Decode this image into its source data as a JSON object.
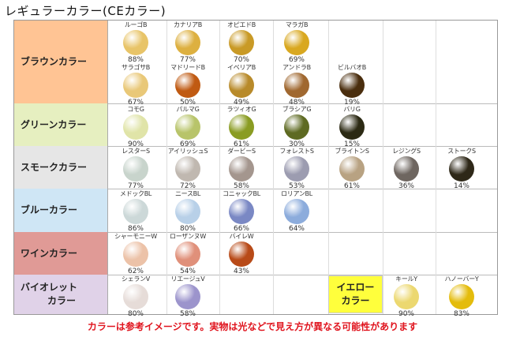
{
  "title": "レギュラーカラー(CEカラー)",
  "note": "カラーは参考イメージです。実物は光などで見え方が異なる可能性があります",
  "categories": [
    {
      "label": "ブラウンカラー",
      "color": "#ffc494"
    },
    {
      "label": "グリーンカラー",
      "color": "#e6efc0"
    },
    {
      "label": "スモークカラー",
      "color": "#e6e6e6"
    },
    {
      "label": "ブルーカラー",
      "color": "#cfe6f5"
    },
    {
      "label": "ワインカラー",
      "color": "#e09a96"
    },
    {
      "label": "バイオレット",
      "label2": "カラー",
      "color": "#e0d2e8"
    }
  ],
  "yellow": {
    "label": "イエロー",
    "label2": "カラー",
    "color": "#ffff3c"
  },
  "swatches": {
    "brown1": [
      {
        "name": "ルーゴB",
        "pct": "88%",
        "color": "#e8c468"
      },
      {
        "name": "カナリアB",
        "pct": "77%",
        "color": "#ddb040"
      },
      {
        "name": "オピエドB",
        "pct": "70%",
        "color": "#c99a26"
      },
      {
        "name": "マラガB",
        "pct": "69%",
        "color": "#d9a820"
      }
    ],
    "brown2": [
      {
        "name": "サラゴサB",
        "pct": "67%",
        "color": "#e9c878"
      },
      {
        "name": "マドリードB",
        "pct": "50%",
        "color": "#c05a12"
      },
      {
        "name": "イベリアB",
        "pct": "49%",
        "color": "#b88a2a"
      },
      {
        "name": "アンドラB",
        "pct": "48%",
        "color": "#a06830"
      },
      {
        "name": "ビルバオB",
        "pct": "19%",
        "color": "#4a2e0e"
      }
    ],
    "green": [
      {
        "name": "コモG",
        "pct": "90%",
        "color": "#e0e4a8"
      },
      {
        "name": "パルマG",
        "pct": "69%",
        "color": "#b8c46a"
      },
      {
        "name": "ラツィオG",
        "pct": "61%",
        "color": "#8a9c22"
      },
      {
        "name": "ブラシアG",
        "pct": "30%",
        "color": "#5e6a22"
      },
      {
        "name": "バリG",
        "pct": "15%",
        "color": "#2c2a14"
      }
    ],
    "smoke": [
      {
        "name": "レスターS",
        "pct": "77%",
        "color": "#c8d4cc"
      },
      {
        "name": "アイリッシュS",
        "pct": "72%",
        "color": "#c0b8b0"
      },
      {
        "name": "ダービーS",
        "pct": "58%",
        "color": "#a4968e"
      },
      {
        "name": "フォレストS",
        "pct": "53%",
        "color": "#9c9cb0"
      },
      {
        "name": "ブライトンS",
        "pct": "61%",
        "color": "#b8a282"
      },
      {
        "name": "レジングS",
        "pct": "36%",
        "color": "#6e6660"
      },
      {
        "name": "ストークS",
        "pct": "14%",
        "color": "#2e2818"
      }
    ],
    "blue": [
      {
        "name": "メドックBL",
        "pct": "86%",
        "color": "#ccd8d8"
      },
      {
        "name": "ニースBL",
        "pct": "80%",
        "color": "#b8d0e8"
      },
      {
        "name": "コニャックBL",
        "pct": "66%",
        "color": "#7a88c4"
      },
      {
        "name": "ロリアンBL",
        "pct": "64%",
        "color": "#8cacdc"
      }
    ],
    "wine": [
      {
        "name": "シャーモニーW",
        "pct": "62%",
        "color": "#ecc2a8"
      },
      {
        "name": "ローザンヌW",
        "pct": "54%",
        "color": "#e0907a"
      },
      {
        "name": "バイレW",
        "pct": "43%",
        "color": "#b84a18"
      }
    ],
    "violet": [
      {
        "name": "シェランV",
        "pct": "80%",
        "color": "#e6dcd8"
      },
      {
        "name": "リエージュV",
        "pct": "58%",
        "color": "#9c94cc"
      }
    ],
    "yellowSw": [
      {
        "name": "キールY",
        "pct": "90%",
        "color": "#ecd870"
      },
      {
        "name": "ハノーバーY",
        "pct": "83%",
        "color": "#e4bc0c"
      }
    ]
  }
}
